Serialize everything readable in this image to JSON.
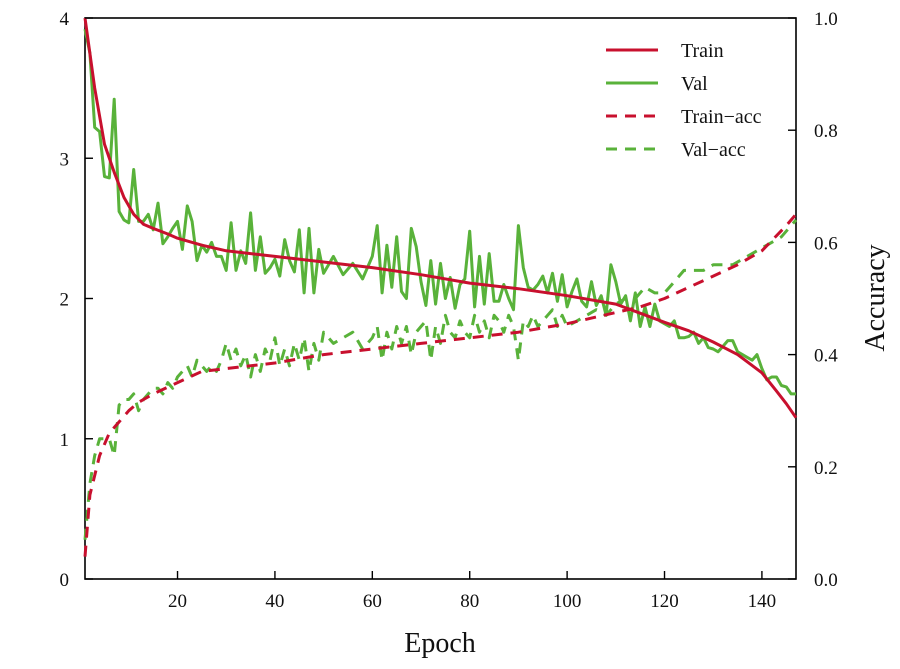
{
  "chart_data": {
    "type": "line",
    "title": "",
    "xlabel": "Epoch",
    "ylabel": "",
    "y2label": "Accuracy",
    "xlim": [
      1,
      147
    ],
    "ylim": [
      0,
      4
    ],
    "y2lim": [
      0,
      1
    ],
    "xticks": [
      20,
      40,
      60,
      80,
      100,
      120,
      140
    ],
    "yticks": [
      0,
      1,
      2,
      3,
      4
    ],
    "y2ticks": [
      "0.0",
      "0.2",
      "0.4",
      "0.6",
      "0.8",
      "1.0"
    ],
    "grid": false,
    "legend_position": "top-right",
    "series": [
      {
        "name": "Train",
        "axis": "left",
        "style": "solid",
        "color": "#c8102e",
        "x": [
          1,
          3,
          5,
          7,
          9,
          11,
          13,
          15,
          18,
          20,
          25,
          30,
          40,
          50,
          60,
          70,
          80,
          90,
          100,
          110,
          120,
          125,
          130,
          135,
          140,
          143,
          145,
          147
        ],
        "y": [
          4.0,
          3.5,
          3.1,
          2.9,
          2.72,
          2.6,
          2.53,
          2.5,
          2.46,
          2.43,
          2.38,
          2.34,
          2.3,
          2.26,
          2.22,
          2.17,
          2.11,
          2.07,
          2.02,
          1.96,
          1.83,
          1.77,
          1.69,
          1.6,
          1.47,
          1.34,
          1.25,
          1.15
        ]
      },
      {
        "name": "Val",
        "axis": "left",
        "style": "solid",
        "color": "#59b23a",
        "x": [
          1,
          2,
          3,
          4,
          5,
          6,
          7,
          8,
          9,
          10,
          11,
          12,
          13,
          14,
          15,
          16,
          17,
          18,
          19,
          20,
          21,
          22,
          23,
          24,
          25,
          26,
          27,
          28,
          29,
          30,
          31,
          32,
          33,
          34,
          35,
          36,
          37,
          38,
          39,
          40,
          41,
          42,
          43,
          44,
          45,
          46,
          47,
          48,
          49,
          50,
          52,
          54,
          56,
          58,
          60,
          61,
          62,
          63,
          64,
          65,
          66,
          67,
          68,
          69,
          70,
          71,
          72,
          73,
          74,
          75,
          76,
          77,
          78,
          79,
          80,
          81,
          82,
          83,
          84,
          85,
          86,
          87,
          88,
          89,
          90,
          91,
          92,
          93,
          94,
          95,
          96,
          97,
          98,
          99,
          100,
          101,
          102,
          103,
          104,
          105,
          106,
          107,
          108,
          109,
          110,
          111,
          112,
          113,
          114,
          115,
          116,
          117,
          118,
          119,
          120,
          121,
          122,
          123,
          124,
          125,
          126,
          127,
          128,
          129,
          130,
          131,
          132,
          133,
          134,
          135,
          136,
          137,
          138,
          139,
          140,
          141,
          142,
          143,
          144,
          145,
          146,
          147
        ],
        "y": [
          3.92,
          3.75,
          3.22,
          3.19,
          2.87,
          2.86,
          3.42,
          2.62,
          2.56,
          2.54,
          2.92,
          2.55,
          2.55,
          2.6,
          2.49,
          2.68,
          2.39,
          2.44,
          2.5,
          2.55,
          2.35,
          2.66,
          2.55,
          2.27,
          2.38,
          2.33,
          2.4,
          2.3,
          2.3,
          2.2,
          2.54,
          2.2,
          2.34,
          2.25,
          2.61,
          2.2,
          2.44,
          2.18,
          2.22,
          2.28,
          2.16,
          2.42,
          2.27,
          2.19,
          2.49,
          2.04,
          2.5,
          2.04,
          2.35,
          2.18,
          2.3,
          2.17,
          2.25,
          2.14,
          2.3,
          2.52,
          2.04,
          2.38,
          2.08,
          2.44,
          2.05,
          2.0,
          2.5,
          2.37,
          2.12,
          1.95,
          2.27,
          1.96,
          2.25,
          2.0,
          2.15,
          1.93,
          2.1,
          2.14,
          2.48,
          1.94,
          2.3,
          1.96,
          2.32,
          1.98,
          1.98,
          2.1,
          2.0,
          1.92,
          2.52,
          2.22,
          2.08,
          2.06,
          2.1,
          2.16,
          2.04,
          2.18,
          1.98,
          2.17,
          1.94,
          2.05,
          2.14,
          1.98,
          1.94,
          2.12,
          1.95,
          2.02,
          1.88,
          2.24,
          2.12,
          1.96,
          2.02,
          1.84,
          2.04,
          1.8,
          1.94,
          1.8,
          1.96,
          1.84,
          1.82,
          1.8,
          1.84,
          1.72,
          1.72,
          1.73,
          1.76,
          1.68,
          1.72,
          1.65,
          1.64,
          1.62,
          1.66,
          1.7,
          1.7,
          1.62,
          1.6,
          1.58,
          1.56,
          1.6,
          1.5,
          1.42,
          1.44,
          1.44,
          1.38,
          1.37,
          1.32,
          1.32
        ]
      },
      {
        "name": "Train−acc",
        "axis": "right",
        "style": "dashed",
        "color": "#c8102e",
        "x": [
          1,
          2,
          4,
          6,
          8,
          10,
          12,
          15,
          20,
          25,
          30,
          40,
          50,
          60,
          70,
          80,
          90,
          100,
          105,
          110,
          115,
          120,
          125,
          130,
          135,
          140,
          145,
          147
        ],
        "y": [
          0.04,
          0.15,
          0.22,
          0.26,
          0.28,
          0.3,
          0.315,
          0.33,
          0.35,
          0.37,
          0.375,
          0.385,
          0.4,
          0.41,
          0.42,
          0.43,
          0.44,
          0.455,
          0.465,
          0.475,
          0.485,
          0.5,
          0.52,
          0.54,
          0.56,
          0.585,
          0.63,
          0.65
        ]
      },
      {
        "name": "Val−acc",
        "axis": "right",
        "style": "dashed",
        "color": "#59b23a",
        "x": [
          1,
          2,
          3,
          4,
          5,
          6,
          7,
          8,
          9,
          10,
          11,
          12,
          13,
          14,
          15,
          16,
          17,
          18,
          19,
          20,
          21,
          22,
          23,
          24,
          25,
          26,
          27,
          28,
          29,
          30,
          31,
          32,
          33,
          34,
          35,
          36,
          37,
          38,
          39,
          40,
          41,
          42,
          43,
          44,
          45,
          46,
          47,
          48,
          49,
          50,
          52,
          54,
          56,
          58,
          60,
          61,
          62,
          63,
          64,
          65,
          66,
          67,
          68,
          69,
          70,
          71,
          72,
          73,
          74,
          75,
          76,
          77,
          78,
          79,
          80,
          81,
          82,
          83,
          84,
          85,
          86,
          87,
          88,
          89,
          90,
          91,
          92,
          93,
          94,
          95,
          96,
          97,
          98,
          99,
          100,
          102,
          104,
          106,
          108,
          110,
          112,
          114,
          116,
          118,
          120,
          122,
          124,
          126,
          128,
          130,
          132,
          134,
          136,
          138,
          140,
          142,
          144,
          146,
          147
        ],
        "y": [
          0.07,
          0.17,
          0.22,
          0.25,
          0.25,
          0.25,
          0.22,
          0.31,
          0.32,
          0.32,
          0.33,
          0.3,
          0.32,
          0.33,
          0.34,
          0.34,
          0.33,
          0.35,
          0.34,
          0.36,
          0.37,
          0.38,
          0.36,
          0.39,
          0.38,
          0.37,
          0.38,
          0.37,
          0.39,
          0.42,
          0.39,
          0.41,
          0.38,
          0.4,
          0.36,
          0.4,
          0.37,
          0.41,
          0.39,
          0.43,
          0.38,
          0.41,
          0.38,
          0.42,
          0.39,
          0.43,
          0.37,
          0.42,
          0.39,
          0.44,
          0.42,
          0.43,
          0.44,
          0.41,
          0.43,
          0.45,
          0.39,
          0.44,
          0.41,
          0.45,
          0.42,
          0.45,
          0.4,
          0.44,
          0.45,
          0.46,
          0.39,
          0.45,
          0.42,
          0.47,
          0.44,
          0.43,
          0.46,
          0.44,
          0.43,
          0.47,
          0.44,
          0.46,
          0.43,
          0.47,
          0.46,
          0.44,
          0.47,
          0.45,
          0.39,
          0.46,
          0.45,
          0.47,
          0.45,
          0.46,
          0.47,
          0.48,
          0.45,
          0.47,
          0.45,
          0.46,
          0.47,
          0.48,
          0.47,
          0.49,
          0.5,
          0.5,
          0.52,
          0.51,
          0.51,
          0.53,
          0.55,
          0.55,
          0.55,
          0.56,
          0.56,
          0.56,
          0.57,
          0.58,
          0.59,
          0.6,
          0.61,
          0.63,
          0.64
        ]
      }
    ]
  }
}
